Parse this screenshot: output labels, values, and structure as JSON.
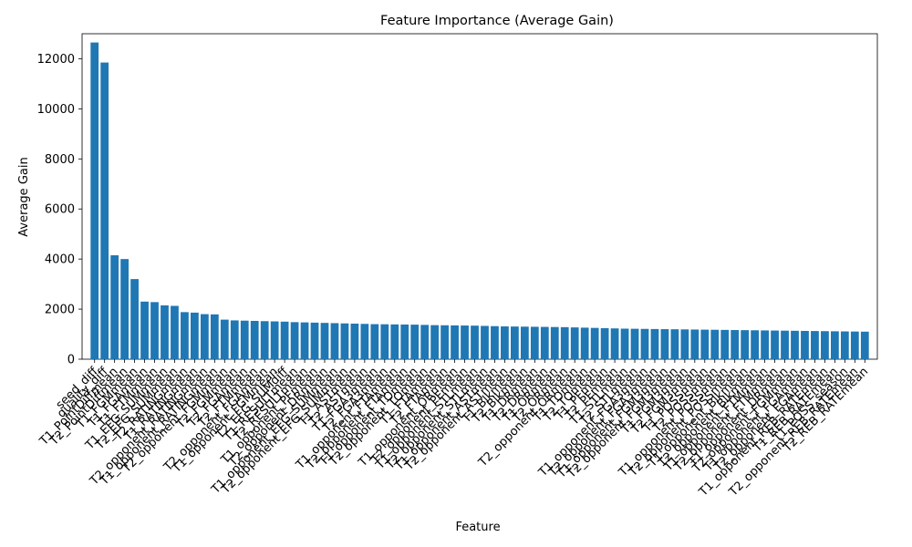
{
  "colors": {
    "bar": "#1f77b4",
    "axis": "#000000",
    "background": "#ffffff"
  },
  "chart_data": {
    "type": "bar",
    "title": "Feature Importance (Average Gain)",
    "xlabel": "Feature",
    "ylabel": "Average Gain",
    "ylim": [
      0,
      13000
    ],
    "yticks": [
      0,
      2000,
      4000,
      6000,
      8000,
      10000,
      12000
    ],
    "grid": false,
    "legend": "none",
    "x_tick_rotation_deg": 45,
    "categories": [
      "seed_diff",
      "quality_diff",
      "T1_PointDiffmean",
      "T2_PointDiffmean",
      "T1_FGMmean",
      "T1_FGAmean",
      "T1_FTMmean",
      "T1_EFG_SUMmean",
      "T2_EFG_SUMmean",
      "T2_RATINGmean",
      "T1_RATINGmean",
      "T2_opponent_RATINGmean",
      "T1_opponent_RATINGmean",
      "T2_opponent_FGMmean",
      "T2_FGMmean",
      "T2_FGAmean",
      "T2_FTMmean",
      "T2_opponent_FGAmean",
      "T1_opponent_FGMmean",
      "T2_EFG_SUMdiff",
      "T1_RESULTmean",
      "T2_RESULTmean",
      "T1_opponent_PFmean",
      "T2_opponent_DRmean",
      "T1_opponent_EFG_SUMmean",
      "T2_opponent_EFG_SUMmean",
      "T1_ASTmean",
      "T2_ASTmean",
      "T1_FGA3mean",
      "T2_FGA3mean",
      "T1_opponent_FTAmean",
      "T2_opponent_FTAmean",
      "T1_opponent_TOmean",
      "T2_opponent_TOmean",
      "T1_FTAmean",
      "T2_FTAmean",
      "T1_opponent_ORmean",
      "T2_opponent_PFmean",
      "T1_opponent_STLmean",
      "T2_opponent_STLmean",
      "T1_opponent_ASTmean",
      "T2_opponent_ASTmean",
      "T1_Blkmean",
      "T2_Blkmean",
      "T1_DRmean",
      "T2_DRmean",
      "T1_ORmean",
      "T2_ORmean",
      "T2_opponent_ORmean",
      "T1_TOmean",
      "T2_TOmean",
      "T1_PFmean",
      "T2_PFmean",
      "T1_STLmean",
      "T2_STLmean",
      "T1_opponent_FGA3mean",
      "T2_opponent_FGA3mean",
      "T1_opponent_FGM3mean",
      "T2_opponent_FGM3mean",
      "T1_FGM3mean",
      "T2_FGM3mean",
      "T1_POSSmean",
      "T2_POSSmean",
      "T1_opponent_POSSmean",
      "T2_opponent_POSSmean",
      "T1_opponent_Blkmean",
      "T2_opponent_Blkmean",
      "T1_opponent_FTMmean",
      "T2_opponent_FTMmean",
      "T1_opponent_DRmean",
      "T2_opponent_FGMmean",
      "T1_opponent_FGAmean",
      "T2_opponent_FGAmean",
      "T1_opponent_REB_RATEmean",
      "T1_REB_RATEmean",
      "T1_POSS_season",
      "T2_opponent_REB_RATEmean",
      "T2_REB_RATEmean"
    ],
    "values": [
      12650,
      11850,
      4150,
      4000,
      3200,
      2300,
      2280,
      2150,
      2130,
      1880,
      1860,
      1800,
      1790,
      1580,
      1550,
      1540,
      1530,
      1520,
      1510,
      1500,
      1480,
      1470,
      1460,
      1450,
      1440,
      1430,
      1420,
      1410,
      1400,
      1395,
      1390,
      1385,
      1380,
      1370,
      1360,
      1355,
      1350,
      1345,
      1340,
      1330,
      1320,
      1310,
      1305,
      1300,
      1295,
      1290,
      1285,
      1280,
      1270,
      1260,
      1250,
      1240,
      1230,
      1220,
      1215,
      1210,
      1205,
      1200,
      1195,
      1190,
      1185,
      1180,
      1175,
      1170,
      1165,
      1160,
      1155,
      1150,
      1145,
      1140,
      1135,
      1130,
      1125,
      1120,
      1115,
      1110,
      1105,
      1100
    ]
  }
}
